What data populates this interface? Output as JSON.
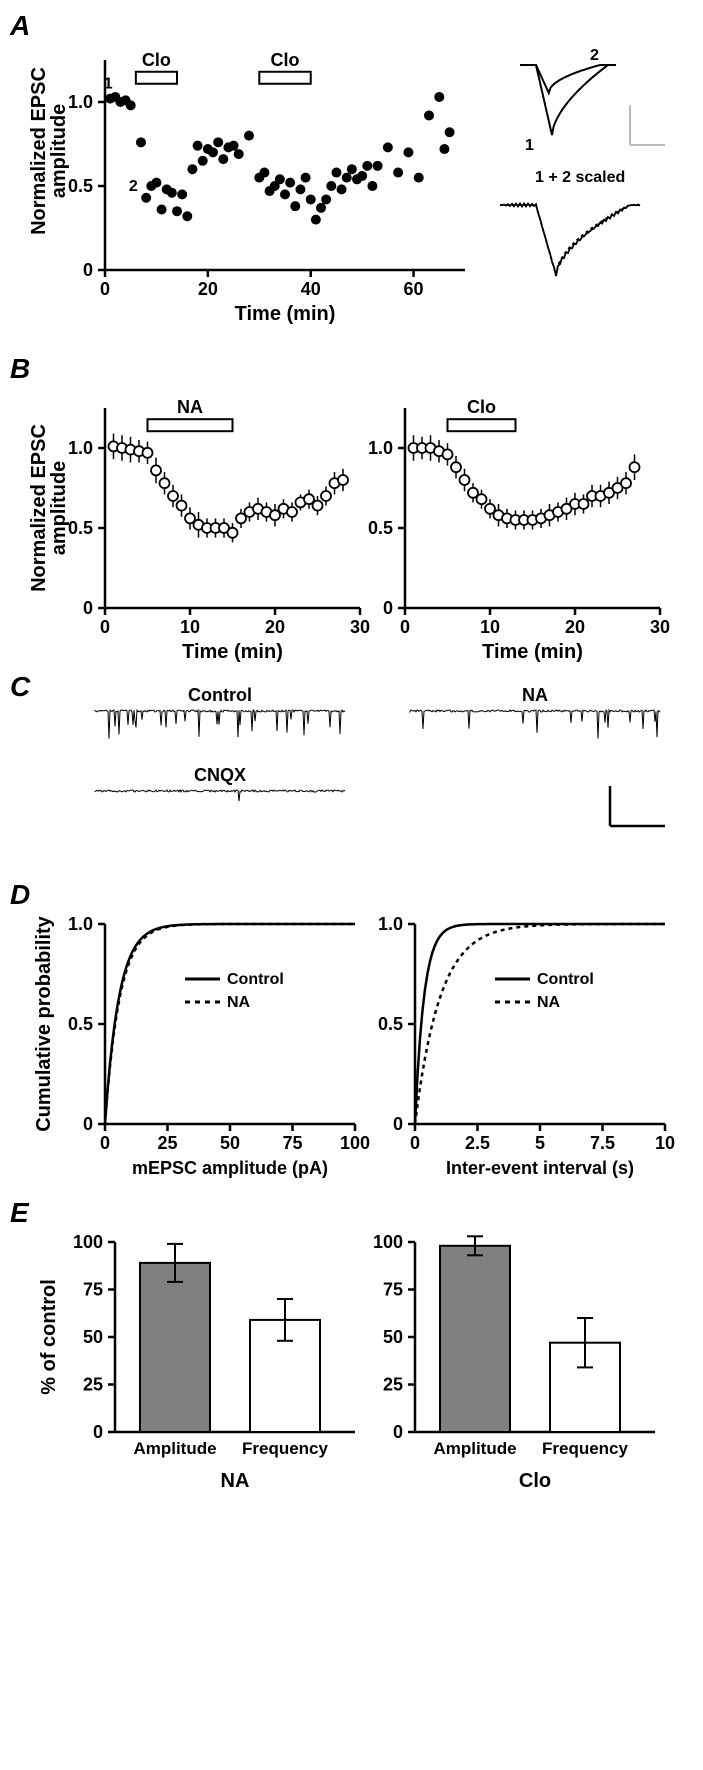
{
  "colors": {
    "black": "#000000",
    "white": "#ffffff",
    "gray_fill": "#808080",
    "light_gray": "#bbbbbb"
  },
  "panelA": {
    "label": "A",
    "ylabel": "Normalized EPSC amplitude",
    "xlabel": "Time (min)",
    "yticks": [
      0,
      0.5,
      1.0
    ],
    "xticks": [
      0,
      20,
      40,
      60
    ],
    "xlim": [
      0,
      70
    ],
    "ylim": [
      0,
      1.25
    ],
    "point_labels": {
      "p1": "1",
      "p2": "2"
    },
    "clo_label": "Clo",
    "clo_bars": [
      [
        6,
        14
      ],
      [
        30,
        40
      ]
    ],
    "inset_labels": {
      "top1": "1",
      "top2": "2",
      "bottom": "1 + 2 scaled"
    },
    "data": [
      [
        1,
        1.02
      ],
      [
        2,
        1.03
      ],
      [
        3,
        1.0
      ],
      [
        4,
        1.01
      ],
      [
        5,
        0.98
      ],
      [
        7,
        0.76
      ],
      [
        8,
        0.43
      ],
      [
        9,
        0.5
      ],
      [
        10,
        0.52
      ],
      [
        11,
        0.36
      ],
      [
        12,
        0.48
      ],
      [
        13,
        0.46
      ],
      [
        14,
        0.35
      ],
      [
        15,
        0.45
      ],
      [
        16,
        0.32
      ],
      [
        17,
        0.6
      ],
      [
        18,
        0.74
      ],
      [
        19,
        0.65
      ],
      [
        20,
        0.72
      ],
      [
        21,
        0.7
      ],
      [
        22,
        0.76
      ],
      [
        23,
        0.66
      ],
      [
        24,
        0.73
      ],
      [
        25,
        0.74
      ],
      [
        26,
        0.69
      ],
      [
        28,
        0.8
      ],
      [
        30,
        0.55
      ],
      [
        31,
        0.58
      ],
      [
        32,
        0.47
      ],
      [
        33,
        0.5
      ],
      [
        34,
        0.54
      ],
      [
        35,
        0.45
      ],
      [
        36,
        0.52
      ],
      [
        37,
        0.38
      ],
      [
        38,
        0.48
      ],
      [
        39,
        0.55
      ],
      [
        40,
        0.42
      ],
      [
        41,
        0.3
      ],
      [
        42,
        0.37
      ],
      [
        43,
        0.42
      ],
      [
        44,
        0.5
      ],
      [
        45,
        0.58
      ],
      [
        46,
        0.48
      ],
      [
        47,
        0.55
      ],
      [
        48,
        0.6
      ],
      [
        49,
        0.54
      ],
      [
        50,
        0.56
      ],
      [
        51,
        0.62
      ],
      [
        52,
        0.5
      ],
      [
        53,
        0.62
      ],
      [
        55,
        0.73
      ],
      [
        57,
        0.58
      ],
      [
        59,
        0.7
      ],
      [
        61,
        0.55
      ],
      [
        63,
        0.92
      ],
      [
        65,
        1.03
      ],
      [
        66,
        0.72
      ],
      [
        67,
        0.82
      ]
    ]
  },
  "panelB": {
    "label": "B",
    "ylabel": "Normalized EPSC amplitude",
    "xlabel": "Time (min)",
    "yticks": [
      0,
      0.5,
      1.0
    ],
    "xticks": [
      0,
      10,
      20,
      30
    ],
    "xlim": [
      0,
      30
    ],
    "ylim": [
      0,
      1.25
    ],
    "left_label": "NA",
    "right_label": "Clo",
    "bar_span_left": [
      5,
      15
    ],
    "bar_span_right": [
      5,
      13
    ],
    "left_data": [
      [
        1,
        1.01,
        0.08
      ],
      [
        2,
        1.0,
        0.08
      ],
      [
        3,
        0.99,
        0.08
      ],
      [
        4,
        0.98,
        0.07
      ],
      [
        5,
        0.97,
        0.07
      ],
      [
        6,
        0.86,
        0.08
      ],
      [
        7,
        0.78,
        0.07
      ],
      [
        8,
        0.7,
        0.07
      ],
      [
        9,
        0.64,
        0.07
      ],
      [
        10,
        0.56,
        0.07
      ],
      [
        11,
        0.52,
        0.08
      ],
      [
        12,
        0.5,
        0.06
      ],
      [
        13,
        0.5,
        0.06
      ],
      [
        14,
        0.5,
        0.06
      ],
      [
        15,
        0.47,
        0.06
      ],
      [
        16,
        0.56,
        0.06
      ],
      [
        17,
        0.6,
        0.06
      ],
      [
        18,
        0.62,
        0.07
      ],
      [
        19,
        0.6,
        0.06
      ],
      [
        20,
        0.58,
        0.07
      ],
      [
        21,
        0.62,
        0.06
      ],
      [
        22,
        0.6,
        0.06
      ],
      [
        23,
        0.66,
        0.05
      ],
      [
        24,
        0.68,
        0.06
      ],
      [
        25,
        0.64,
        0.06
      ],
      [
        26,
        0.7,
        0.06
      ],
      [
        27,
        0.78,
        0.07
      ],
      [
        28,
        0.8,
        0.07
      ]
    ],
    "right_data": [
      [
        1,
        1.0,
        0.08
      ],
      [
        2,
        1.0,
        0.07
      ],
      [
        3,
        1.0,
        0.08
      ],
      [
        4,
        0.98,
        0.07
      ],
      [
        5,
        0.96,
        0.07
      ],
      [
        6,
        0.88,
        0.07
      ],
      [
        7,
        0.8,
        0.07
      ],
      [
        8,
        0.72,
        0.06
      ],
      [
        9,
        0.68,
        0.06
      ],
      [
        10,
        0.62,
        0.06
      ],
      [
        11,
        0.58,
        0.07
      ],
      [
        12,
        0.56,
        0.06
      ],
      [
        13,
        0.55,
        0.06
      ],
      [
        14,
        0.55,
        0.06
      ],
      [
        15,
        0.55,
        0.06
      ],
      [
        16,
        0.56,
        0.06
      ],
      [
        17,
        0.58,
        0.07
      ],
      [
        18,
        0.6,
        0.06
      ],
      [
        19,
        0.62,
        0.07
      ],
      [
        20,
        0.65,
        0.07
      ],
      [
        21,
        0.65,
        0.06
      ],
      [
        22,
        0.7,
        0.07
      ],
      [
        23,
        0.7,
        0.07
      ],
      [
        24,
        0.72,
        0.07
      ],
      [
        25,
        0.75,
        0.07
      ],
      [
        26,
        0.78,
        0.07
      ],
      [
        27,
        0.88,
        0.08
      ]
    ]
  },
  "panelC": {
    "label": "C",
    "control_label": "Control",
    "na_label": "NA",
    "cnqx_label": "CNQX"
  },
  "panelD": {
    "label": "D",
    "ylabel": "Cumulative probability",
    "left_xlabel": "mEPSC amplitude (pA)",
    "right_xlabel": "Inter-event interval (s)",
    "yticks": [
      0,
      0.5,
      1.0
    ],
    "left_xticks": [
      0,
      25,
      50,
      75,
      100
    ],
    "right_xticks": [
      0,
      2.5,
      5,
      7.5,
      10
    ],
    "legend_control": "Control",
    "legend_na": "NA"
  },
  "panelE": {
    "label": "E",
    "ylabel": "% of control",
    "yticks": [
      0,
      25,
      50,
      75,
      100
    ],
    "cat_labels": [
      "Amplitude",
      "Frequency"
    ],
    "na_label": "NA",
    "clo_label": "Clo",
    "left_data": {
      "amplitude": {
        "val": 89,
        "err": 10
      },
      "frequency": {
        "val": 59,
        "err": 11
      }
    },
    "right_data": {
      "amplitude": {
        "val": 98,
        "err": 5
      },
      "frequency": {
        "val": 47,
        "err": 13
      }
    }
  }
}
